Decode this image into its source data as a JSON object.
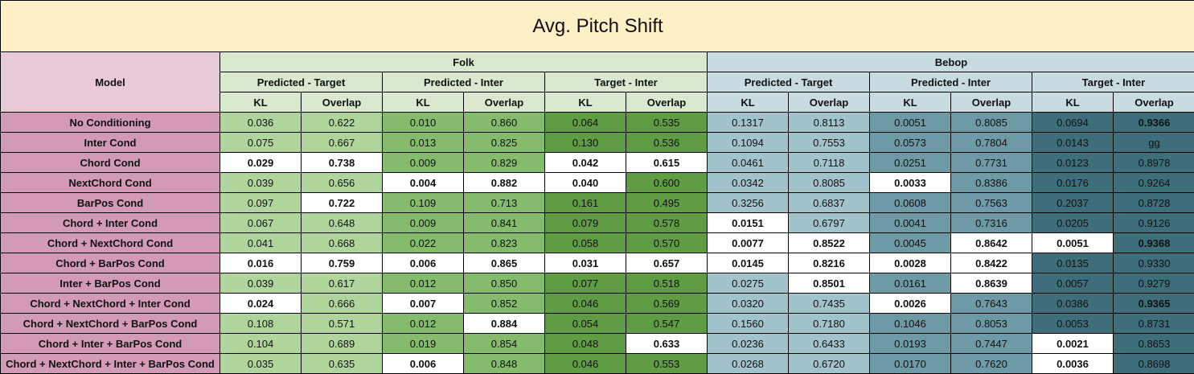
{
  "title": "Avg. Pitch Shift",
  "model_header": "Model",
  "groups": [
    "Folk",
    "Bebop"
  ],
  "pairs": [
    "Predicted - Target",
    "Predicted - Inter",
    "Target - Inter",
    "Predicted - Target",
    "Predicted - Inter",
    "Target - Inter"
  ],
  "metrics": [
    "KL",
    "Overlap",
    "KL",
    "Overlap",
    "KL",
    "Overlap",
    "KL",
    "Overlap",
    "KL",
    "Overlap",
    "KL",
    "Overlap"
  ],
  "rows": [
    {
      "model": "No Conditioning",
      "values": [
        "0.036",
        "0.622",
        "0.010",
        "0.860",
        "0.064",
        "0.535",
        "0.1317",
        "0.8113",
        "0.0051",
        "0.8085",
        "0.0694",
        "0.9366"
      ],
      "best": [
        11
      ]
    },
    {
      "model": "Inter Cond",
      "values": [
        "0.075",
        "0.667",
        "0.013",
        "0.825",
        "0.130",
        "0.536",
        "0.1094",
        "0.7553",
        "0.0573",
        "0.7804",
        "0.0143",
        "gg"
      ],
      "best": []
    },
    {
      "model": "Chord Cond",
      "values": [
        "0.029",
        "0.738",
        "0.009",
        "0.829",
        "0.042",
        "0.615",
        "0.0461",
        "0.7118",
        "0.0251",
        "0.7731",
        "0.0123",
        "0.8978"
      ],
      "best": [
        0,
        1,
        4,
        5
      ]
    },
    {
      "model": "NextChord Cond",
      "values": [
        "0.039",
        "0.656",
        "0.004",
        "0.882",
        "0.040",
        "0.600",
        "0.0342",
        "0.8085",
        "0.0033",
        "0.8386",
        "0.0176",
        "0.9264"
      ],
      "best": [
        2,
        3,
        4,
        8
      ]
    },
    {
      "model": "BarPos Cond",
      "values": [
        "0.097",
        "0.722",
        "0.109",
        "0.713",
        "0.161",
        "0.495",
        "0.3256",
        "0.6837",
        "0.0608",
        "0.7563",
        "0.2037",
        "0.8728"
      ],
      "best": [
        1
      ]
    },
    {
      "model": "Chord + Inter Cond",
      "values": [
        "0.067",
        "0.648",
        "0.009",
        "0.841",
        "0.079",
        "0.578",
        "0.0151",
        "0.6797",
        "0.0041",
        "0.7316",
        "0.0205",
        "0.9126"
      ],
      "best": [
        6
      ]
    },
    {
      "model": "Chord + NextChord Cond",
      "values": [
        "0.041",
        "0.668",
        "0.022",
        "0.823",
        "0.058",
        "0.570",
        "0.0077",
        "0.8522",
        "0.0045",
        "0.8642",
        "0.0051",
        "0.9368"
      ],
      "best": [
        6,
        7,
        9,
        10,
        11
      ]
    },
    {
      "model": "Chord + BarPos Cond",
      "values": [
        "0.016",
        "0.759",
        "0.006",
        "0.865",
        "0.031",
        "0.657",
        "0.0145",
        "0.8216",
        "0.0028",
        "0.8422",
        "0.0135",
        "0.9330"
      ],
      "best": [
        0,
        1,
        2,
        3,
        4,
        5,
        6,
        7,
        8,
        9
      ]
    },
    {
      "model": "Inter + BarPos Cond",
      "values": [
        "0.039",
        "0.617",
        "0.012",
        "0.850",
        "0.077",
        "0.518",
        "0.0275",
        "0.8501",
        "0.0161",
        "0.8639",
        "0.0057",
        "0.9279"
      ],
      "best": [
        7,
        9
      ]
    },
    {
      "model": "Chord + NextChord + Inter Cond",
      "values": [
        "0.024",
        "0.666",
        "0.007",
        "0.852",
        "0.046",
        "0.569",
        "0.0320",
        "0.7435",
        "0.0026",
        "0.7643",
        "0.0386",
        "0.9365"
      ],
      "best": [
        0,
        2,
        8,
        11
      ]
    },
    {
      "model": "Chord + NextChord + BarPos Cond",
      "values": [
        "0.108",
        "0.571",
        "0.012",
        "0.884",
        "0.054",
        "0.547",
        "0.1560",
        "0.7180",
        "0.1046",
        "0.8053",
        "0.0053",
        "0.8731"
      ],
      "best": [
        3
      ]
    },
    {
      "model": "Chord + Inter + BarPos Cond",
      "values": [
        "0.104",
        "0.689",
        "0.019",
        "0.854",
        "0.048",
        "0.633",
        "0.0236",
        "0.6433",
        "0.0193",
        "0.7447",
        "0.0021",
        "0.8653"
      ],
      "best": [
        5,
        10
      ]
    },
    {
      "model": "Chord + NextChord + Inter + BarPos Cond",
      "values": [
        "0.035",
        "0.635",
        "0.006",
        "0.848",
        "0.046",
        "0.553",
        "0.0268",
        "0.6720",
        "0.0170",
        "0.7620",
        "0.0036",
        "0.8698"
      ],
      "best": [
        2,
        10
      ]
    }
  ]
}
